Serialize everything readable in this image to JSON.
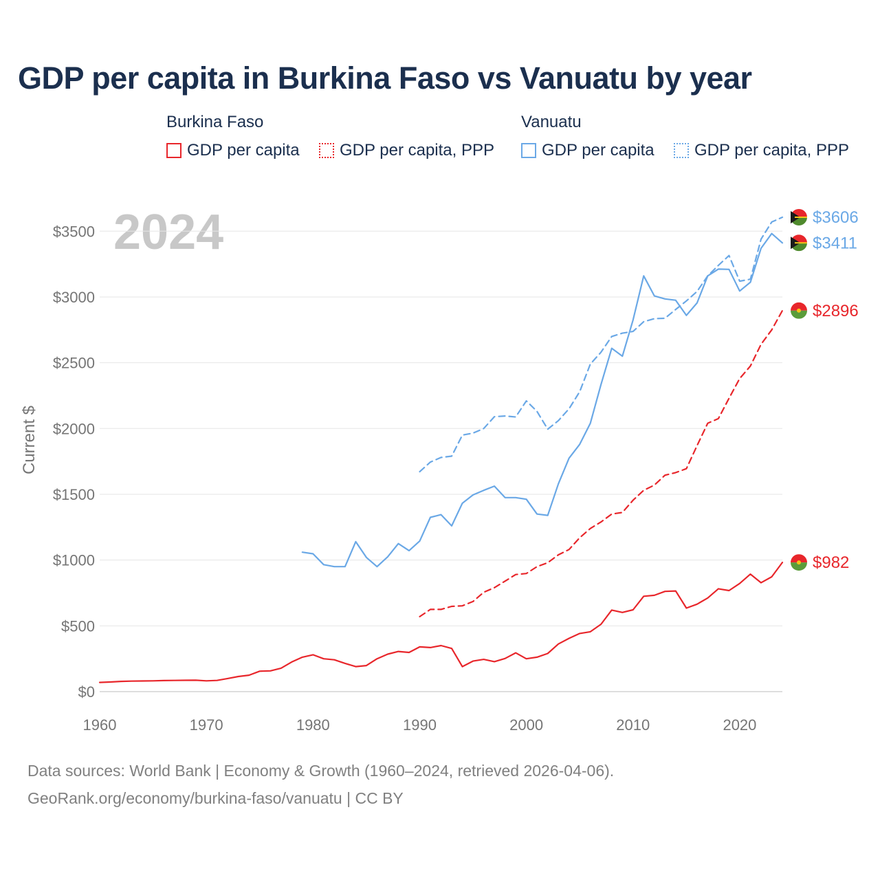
{
  "title": "GDP per capita in Burkina Faso vs Vanuatu by year",
  "legend": {
    "groups": [
      {
        "country": "Burkina Faso",
        "items": [
          {
            "label": "GDP per capita",
            "style": "solid",
            "color": "#e8262b"
          },
          {
            "label": "GDP per capita, PPP",
            "style": "dotted",
            "color": "#e8262b"
          }
        ]
      },
      {
        "country": "Vanuatu",
        "items": [
          {
            "label": "GDP per capita",
            "style": "solid",
            "color": "#6aa8e6"
          },
          {
            "label": "GDP per capita, PPP",
            "style": "dotted",
            "color": "#6aa8e6"
          }
        ]
      }
    ]
  },
  "footer": {
    "line1": "Data sources: World Bank | Economy & Growth (1960–2024, retrieved 2026-04-06).",
    "line2": "GeoRank.org/economy/burkina-faso/vanuatu | CC BY"
  },
  "chart_data": {
    "type": "line",
    "title": "GDP per capita in Burkina Faso vs Vanuatu by year",
    "year_watermark": "2024",
    "ylabel": "Current $",
    "xlabel": "",
    "xlim": [
      1960,
      2024
    ],
    "ylim": [
      0,
      3700
    ],
    "xticks": [
      1960,
      1970,
      1980,
      1990,
      2000,
      2010,
      2020
    ],
    "yticks": [
      0,
      500,
      1000,
      1500,
      2000,
      2500,
      3000,
      3500
    ],
    "ytick_labels": [
      "$0",
      "$500",
      "$1000",
      "$1500",
      "$2000",
      "$2500",
      "$3000",
      "$3500"
    ],
    "grid": true,
    "series": [
      {
        "name": "Burkina Faso GDP per capita",
        "color": "#e8262b",
        "dash": "solid",
        "end_label": "$982",
        "x": [
          1960,
          1961,
          1962,
          1963,
          1964,
          1965,
          1966,
          1967,
          1968,
          1969,
          1970,
          1971,
          1972,
          1973,
          1974,
          1975,
          1976,
          1977,
          1978,
          1979,
          1980,
          1981,
          1982,
          1983,
          1984,
          1985,
          1986,
          1987,
          1988,
          1989,
          1990,
          1991,
          1992,
          1993,
          1994,
          1995,
          1996,
          1997,
          1998,
          1999,
          2000,
          2001,
          2002,
          2003,
          2004,
          2005,
          2006,
          2007,
          2008,
          2009,
          2010,
          2011,
          2012,
          2013,
          2014,
          2015,
          2016,
          2017,
          2018,
          2019,
          2020,
          2021,
          2022,
          2023,
          2024
        ],
        "values": [
          70,
          73,
          78,
          80,
          81,
          82,
          84,
          85,
          86,
          87,
          82,
          85,
          100,
          115,
          125,
          155,
          158,
          178,
          225,
          262,
          280,
          250,
          242,
          215,
          190,
          198,
          250,
          285,
          305,
          298,
          340,
          335,
          350,
          328,
          190,
          232,
          245,
          228,
          252,
          295,
          250,
          262,
          290,
          362,
          405,
          442,
          455,
          512,
          620,
          602,
          622,
          725,
          732,
          762,
          765,
          635,
          665,
          712,
          782,
          768,
          822,
          893,
          828,
          873,
          982
        ]
      },
      {
        "name": "Burkina Faso GDP per capita, PPP",
        "color": "#e8262b",
        "dash": "dashed",
        "end_label": "$2896",
        "x": [
          1990,
          1991,
          1992,
          1993,
          1994,
          1995,
          1996,
          1997,
          1998,
          1999,
          2000,
          2001,
          2002,
          2003,
          2004,
          2005,
          2006,
          2007,
          2008,
          2009,
          2010,
          2011,
          2012,
          2013,
          2014,
          2015,
          2016,
          2017,
          2018,
          2019,
          2020,
          2021,
          2022,
          2023,
          2024
        ],
        "values": [
          570,
          625,
          625,
          648,
          652,
          685,
          755,
          790,
          840,
          890,
          898,
          950,
          980,
          1040,
          1080,
          1170,
          1240,
          1290,
          1350,
          1362,
          1455,
          1530,
          1570,
          1645,
          1665,
          1695,
          1870,
          2040,
          2075,
          2230,
          2380,
          2475,
          2640,
          2750,
          2896
        ]
      },
      {
        "name": "Vanuatu GDP per capita",
        "color": "#6aa8e6",
        "dash": "solid",
        "end_label": "$3411",
        "x": [
          1979,
          1980,
          1981,
          1982,
          1983,
          1984,
          1985,
          1986,
          1987,
          1988,
          1989,
          1990,
          1991,
          1992,
          1993,
          1994,
          1995,
          1996,
          1997,
          1998,
          1999,
          2000,
          2001,
          2002,
          2003,
          2004,
          2005,
          2006,
          2007,
          2008,
          2009,
          2010,
          2011,
          2012,
          2013,
          2014,
          2015,
          2016,
          2017,
          2018,
          2019,
          2020,
          2021,
          2022,
          2023,
          2024
        ],
        "values": [
          1060,
          1048,
          965,
          950,
          950,
          1140,
          1020,
          950,
          1025,
          1125,
          1072,
          1145,
          1325,
          1345,
          1260,
          1432,
          1495,
          1530,
          1562,
          1475,
          1475,
          1462,
          1350,
          1340,
          1580,
          1775,
          1880,
          2040,
          2335,
          2610,
          2550,
          2825,
          3160,
          3008,
          2985,
          2975,
          2860,
          2955,
          3160,
          3212,
          3210,
          3045,
          3112,
          3370,
          3482,
          3411
        ]
      },
      {
        "name": "Vanuatu GDP per capita, PPP",
        "color": "#6aa8e6",
        "dash": "dashed",
        "end_label": "$3606",
        "x": [
          1990,
          1991,
          1992,
          1993,
          1994,
          1995,
          1996,
          1997,
          1998,
          1999,
          2000,
          2001,
          2002,
          2003,
          2004,
          2005,
          2006,
          2007,
          2008,
          2009,
          2010,
          2011,
          2012,
          2013,
          2014,
          2015,
          2016,
          2017,
          2018,
          2019,
          2020,
          2021,
          2022,
          2023,
          2024
        ],
        "values": [
          1672,
          1745,
          1780,
          1790,
          1950,
          1965,
          2000,
          2090,
          2095,
          2088,
          2210,
          2130,
          1995,
          2060,
          2150,
          2280,
          2490,
          2580,
          2700,
          2725,
          2738,
          2812,
          2835,
          2838,
          2905,
          2970,
          3042,
          3160,
          3240,
          3315,
          3120,
          3135,
          3440,
          3570,
          3606
        ]
      }
    ],
    "end_markers": [
      {
        "label": "$3606",
        "country": "Vanuatu",
        "value": 3606
      },
      {
        "label": "$3411",
        "country": "Vanuatu",
        "value": 3411
      },
      {
        "label": "$2896",
        "country": "Burkina Faso",
        "value": 2896
      },
      {
        "label": "$982",
        "country": "Burkina Faso",
        "value": 982
      }
    ]
  }
}
